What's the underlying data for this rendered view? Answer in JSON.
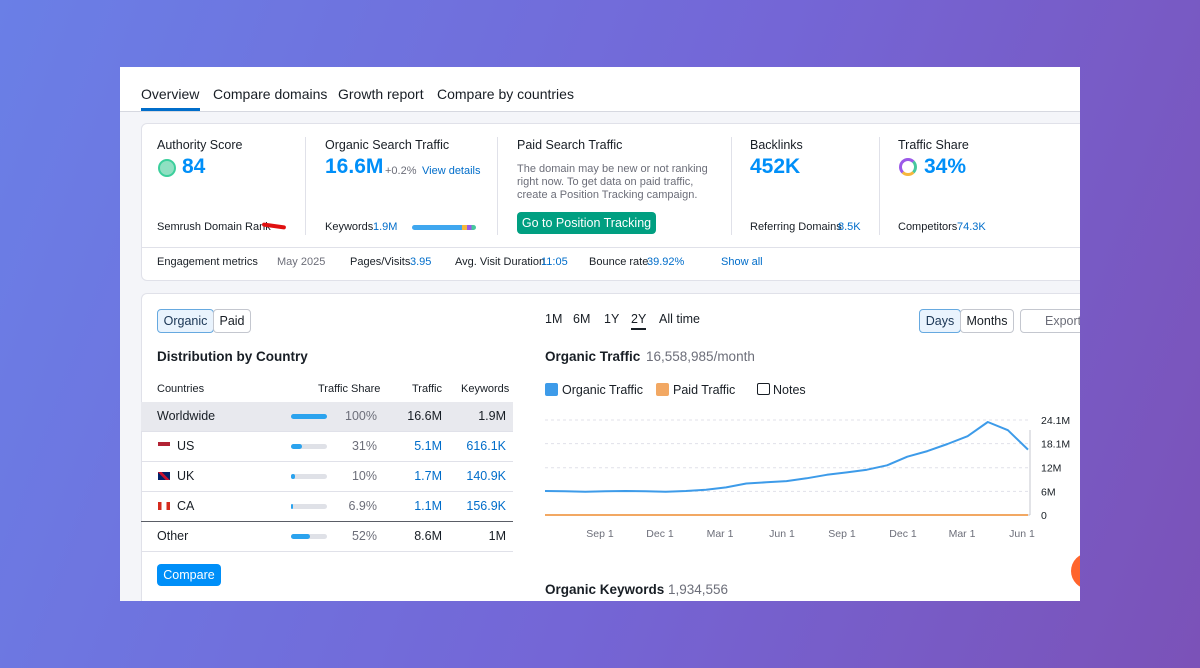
{
  "tabs": [
    "Overview",
    "Compare domains",
    "Growth report",
    "Compare by countries"
  ],
  "metrics": {
    "authority": {
      "label": "Authority Score",
      "value": "84",
      "footer": "Semrush Domain Rank"
    },
    "organic": {
      "label": "Organic Search Traffic",
      "value": "16.6M",
      "change": "+0.2%",
      "link": "View details",
      "footer_label": "Keywords",
      "footer_value": "1.9M"
    },
    "paid": {
      "label": "Paid Search Traffic",
      "text": [
        "The domain may be new or not ranking",
        "right now. To get data on paid traffic,",
        "create a Position Tracking campaign."
      ],
      "button": "Go to Position Tracking"
    },
    "backlinks": {
      "label": "Backlinks",
      "value": "452K",
      "footer_label": "Referring Domains",
      "footer_value": "8.5K"
    },
    "share": {
      "label": "Traffic Share",
      "value": "34%",
      "footer_label": "Competitors",
      "footer_value": "74.3K"
    }
  },
  "engagement": {
    "label": "Engagement metrics",
    "date": "May 2025",
    "items": [
      {
        "label": "Pages/Visits",
        "value": "3.95"
      },
      {
        "label": "Avg. Visit Duration",
        "value": "11:05"
      },
      {
        "label": "Bounce rate",
        "value": "39.92%"
      }
    ],
    "link": "Show all"
  },
  "toggle": [
    "Organic",
    "Paid"
  ],
  "distribution": {
    "title": "Distribution by Country",
    "columns": [
      "Countries",
      "Traffic Share",
      "Traffic",
      "Keywords"
    ],
    "rows": [
      {
        "country": "Worldwide",
        "share": 100,
        "share_label": "100%",
        "traffic": "16.6M",
        "keywords": "1.9M"
      },
      {
        "country": "US",
        "share": 31,
        "share_label": "31%",
        "traffic": "5.1M",
        "keywords": "616.1K"
      },
      {
        "country": "UK",
        "share": 10,
        "share_label": "10%",
        "traffic": "1.7M",
        "keywords": "140.9K"
      },
      {
        "country": "CA",
        "share": 6.9,
        "share_label": "6.9%",
        "traffic": "1.1M",
        "keywords": "156.9K"
      },
      {
        "country": "Other",
        "share": 52,
        "share_label": "52%",
        "traffic": "8.6M",
        "keywords": "1M"
      }
    ],
    "button": "Compare"
  },
  "periods": [
    "1M",
    "6M",
    "1Y",
    "2Y",
    "All time"
  ],
  "granularity": [
    "Days",
    "Months"
  ],
  "export": "Export",
  "chart_data": {
    "type": "line",
    "title": "Organic Traffic",
    "subtitle": "16,558,985/month",
    "notes": "Notes",
    "series": [
      {
        "name": "Organic Traffic",
        "color": "#3d9be9",
        "values": [
          6100000,
          6000000,
          5900000,
          6000000,
          6100000,
          6000000,
          5900000,
          6100000,
          6400000,
          7000000,
          8000000,
          8300000,
          8600000,
          9300000,
          10200000,
          10800000,
          11500000,
          12600000,
          14800000,
          16200000,
          18000000,
          20000000,
          23600000,
          21500000,
          16600000
        ]
      },
      {
        "name": "Paid Traffic",
        "color": "#f2a863",
        "values": [
          0,
          0,
          0,
          0,
          0,
          0,
          0,
          0,
          0,
          0,
          0,
          0,
          0,
          0,
          0,
          0,
          0,
          0,
          0,
          0,
          0,
          0,
          0,
          0,
          0
        ]
      }
    ],
    "ylim": [
      0,
      24100000
    ],
    "yticks": [
      0,
      {
        "value": 6000000,
        "label": "6M"
      },
      {
        "value": 12000000,
        "label": "12M"
      },
      {
        "value": 18100000,
        "label": "18.1M"
      },
      {
        "value": 24100000,
        "label": "24.1M"
      }
    ],
    "xtick_labels": [
      "Sep 1",
      "Dec 1",
      "Mar 1",
      "Jun 1",
      "Sep 1",
      "Dec 1",
      "Mar 1",
      "Jun 1"
    ],
    "grid": true
  },
  "keywords_section": {
    "title": "Organic Keywords",
    "value": "1,934,556"
  }
}
